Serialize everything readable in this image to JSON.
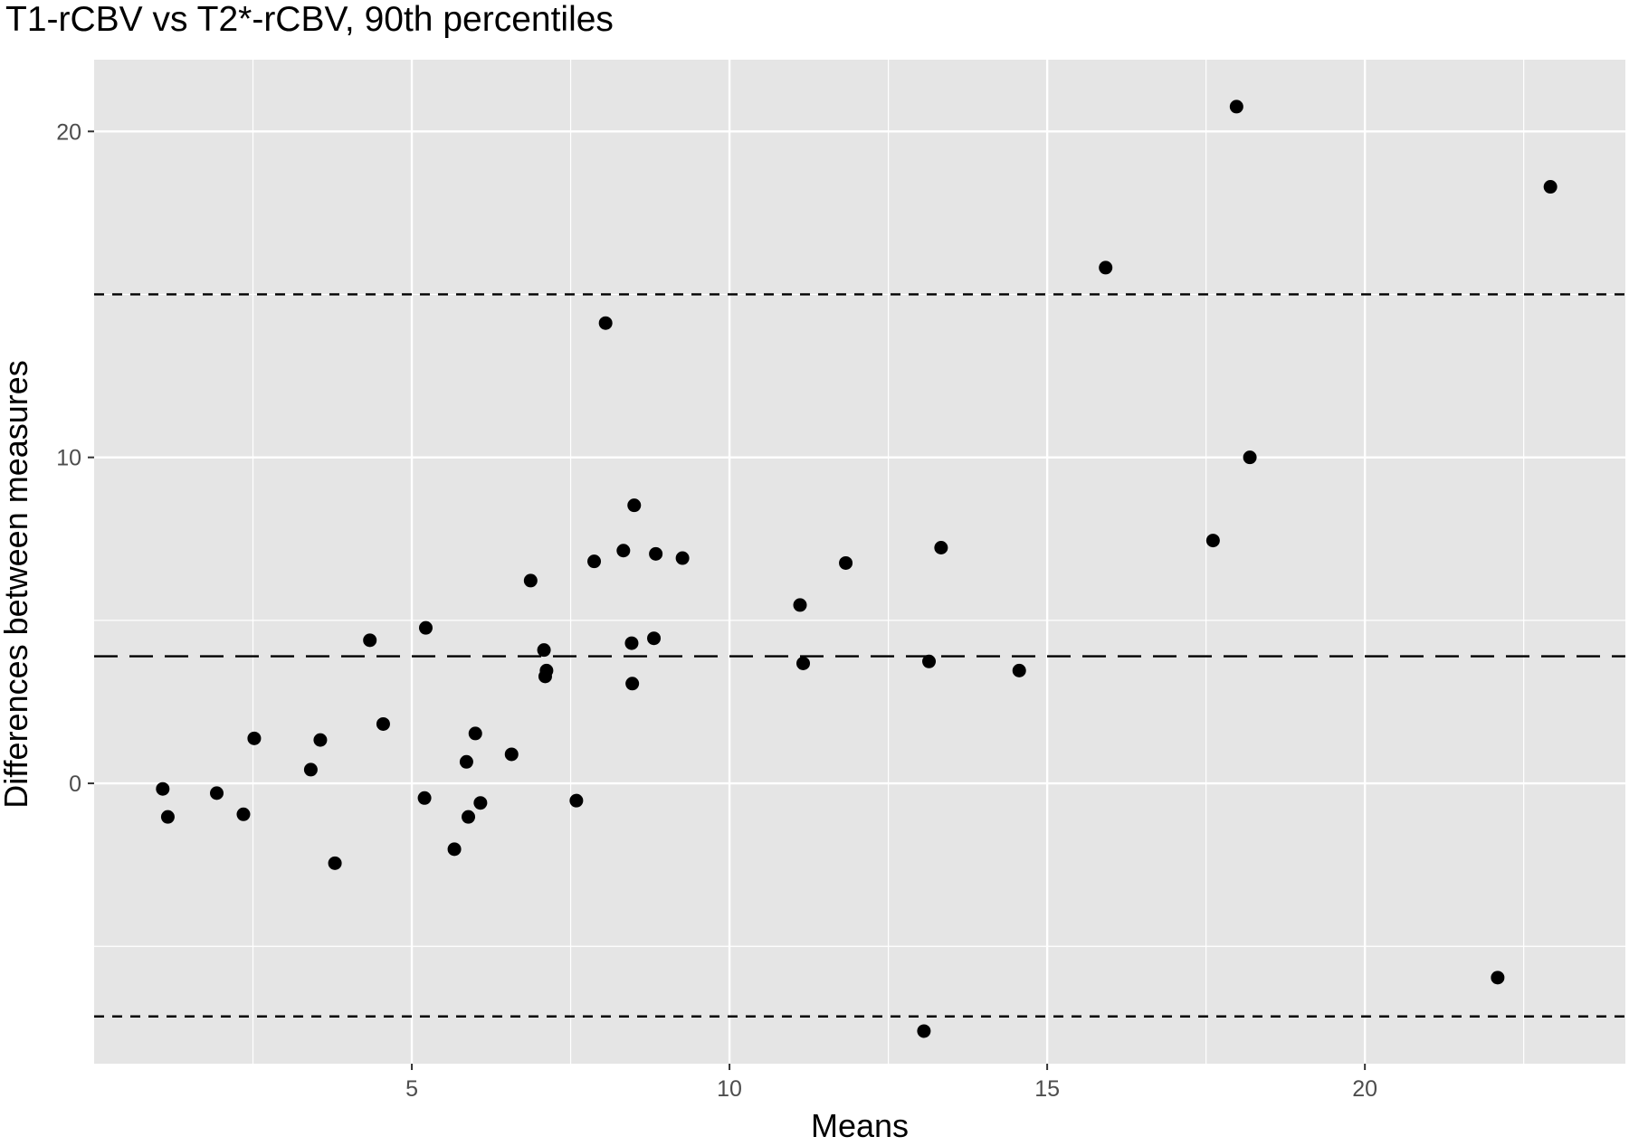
{
  "chart_data": {
    "type": "scatter",
    "title": "T1-rCBV vs T2*-rCBV, 90th percentiles",
    "xlabel": "Means",
    "ylabel": "Differences between measures",
    "xlim": [
      0.0,
      24.1
    ],
    "ylim": [
      -8.6,
      22.2
    ],
    "x_ticks": [
      5,
      10,
      15,
      20
    ],
    "x_tick_labels": [
      "5",
      "10",
      "15",
      "20"
    ],
    "y_ticks": [
      0,
      10,
      20
    ],
    "y_tick_labels": [
      "0",
      "10",
      "20"
    ],
    "grid": true,
    "background": "#e5e5e5",
    "grid_color": "#ffffff",
    "point_color": "#000000",
    "reference_lines": [
      {
        "kind": "mean",
        "y": 3.9,
        "style": "long-dash"
      },
      {
        "kind": "upper-limit",
        "y": 15.0,
        "style": "short-dash"
      },
      {
        "kind": "lower-limit",
        "y": -7.15,
        "style": "short-dash"
      }
    ],
    "points": [
      {
        "x": 1.08,
        "y": -0.17
      },
      {
        "x": 1.16,
        "y": -1.03
      },
      {
        "x": 1.93,
        "y": -0.3
      },
      {
        "x": 2.35,
        "y": -0.95
      },
      {
        "x": 2.52,
        "y": 1.38
      },
      {
        "x": 3.41,
        "y": 0.42
      },
      {
        "x": 3.56,
        "y": 1.33
      },
      {
        "x": 3.79,
        "y": -2.45
      },
      {
        "x": 4.34,
        "y": 4.39
      },
      {
        "x": 4.55,
        "y": 1.82
      },
      {
        "x": 5.22,
        "y": 4.77
      },
      {
        "x": 5.2,
        "y": -0.45
      },
      {
        "x": 5.67,
        "y": -2.02
      },
      {
        "x": 5.86,
        "y": 0.66
      },
      {
        "x": 5.89,
        "y": -1.03
      },
      {
        "x": 6.0,
        "y": 1.53
      },
      {
        "x": 6.08,
        "y": -0.6
      },
      {
        "x": 6.57,
        "y": 0.89
      },
      {
        "x": 6.87,
        "y": 6.22
      },
      {
        "x": 7.08,
        "y": 4.09
      },
      {
        "x": 7.12,
        "y": 3.46
      },
      {
        "x": 7.1,
        "y": 3.28
      },
      {
        "x": 7.59,
        "y": -0.53
      },
      {
        "x": 7.87,
        "y": 6.81
      },
      {
        "x": 8.05,
        "y": 14.12
      },
      {
        "x": 8.33,
        "y": 7.14
      },
      {
        "x": 8.46,
        "y": 4.3
      },
      {
        "x": 8.5,
        "y": 8.53
      },
      {
        "x": 8.47,
        "y": 3.06
      },
      {
        "x": 8.81,
        "y": 4.45
      },
      {
        "x": 8.84,
        "y": 7.04
      },
      {
        "x": 9.26,
        "y": 6.91
      },
      {
        "x": 11.11,
        "y": 5.47
      },
      {
        "x": 11.16,
        "y": 3.68
      },
      {
        "x": 11.83,
        "y": 6.76
      },
      {
        "x": 13.06,
        "y": -7.6
      },
      {
        "x": 13.14,
        "y": 3.74
      },
      {
        "x": 13.33,
        "y": 7.23
      },
      {
        "x": 14.56,
        "y": 3.46
      },
      {
        "x": 15.92,
        "y": 15.82
      },
      {
        "x": 17.61,
        "y": 7.45
      },
      {
        "x": 17.98,
        "y": 20.76
      },
      {
        "x": 18.19,
        "y": 10.0
      },
      {
        "x": 22.09,
        "y": -5.96
      },
      {
        "x": 22.92,
        "y": 18.3
      }
    ]
  }
}
